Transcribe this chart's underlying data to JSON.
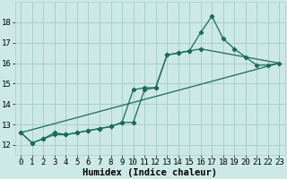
{
  "xlabel": "Humidex (Indice chaleur)",
  "xlim": [
    -0.5,
    23.5
  ],
  "ylim": [
    11.5,
    19.0
  ],
  "yticks": [
    12,
    13,
    14,
    15,
    16,
    17,
    18
  ],
  "xticks": [
    0,
    1,
    2,
    3,
    4,
    5,
    6,
    7,
    8,
    9,
    10,
    11,
    12,
    13,
    14,
    15,
    16,
    17,
    18,
    19,
    20,
    21,
    22,
    23
  ],
  "background_color": "#cce9e5",
  "grid_color": "#aacfca",
  "line_color": "#1a6b5a",
  "line1_x": [
    0,
    1,
    2,
    3,
    4,
    5,
    6,
    7,
    8,
    9,
    10,
    11,
    12,
    13,
    14,
    15,
    16,
    17,
    18,
    19,
    20,
    21,
    22,
    23
  ],
  "line1_y": [
    12.6,
    12.1,
    12.3,
    12.6,
    12.5,
    12.6,
    12.7,
    12.8,
    12.9,
    13.1,
    14.7,
    14.8,
    14.8,
    16.4,
    16.5,
    16.6,
    17.5,
    18.3,
    17.2,
    16.7,
    16.3,
    15.9,
    15.9,
    16.0
  ],
  "line2_x": [
    0,
    1,
    2,
    3,
    4,
    5,
    6,
    7,
    8,
    9,
    10,
    11,
    12,
    13,
    14,
    15,
    16,
    17,
    18,
    19,
    20,
    21,
    22,
    23
  ],
  "line2_y": [
    12.6,
    12.1,
    12.3,
    12.5,
    12.5,
    12.6,
    12.7,
    12.8,
    12.9,
    13.1,
    13.1,
    14.7,
    14.8,
    16.4,
    16.5,
    16.6,
    16.7,
    null,
    null,
    null,
    null,
    null,
    null,
    null
  ],
  "line3_x": [
    0,
    23
  ],
  "line3_y": [
    12.6,
    16.0
  ],
  "tick_fontsize": 6.5,
  "label_fontsize": 7.5
}
